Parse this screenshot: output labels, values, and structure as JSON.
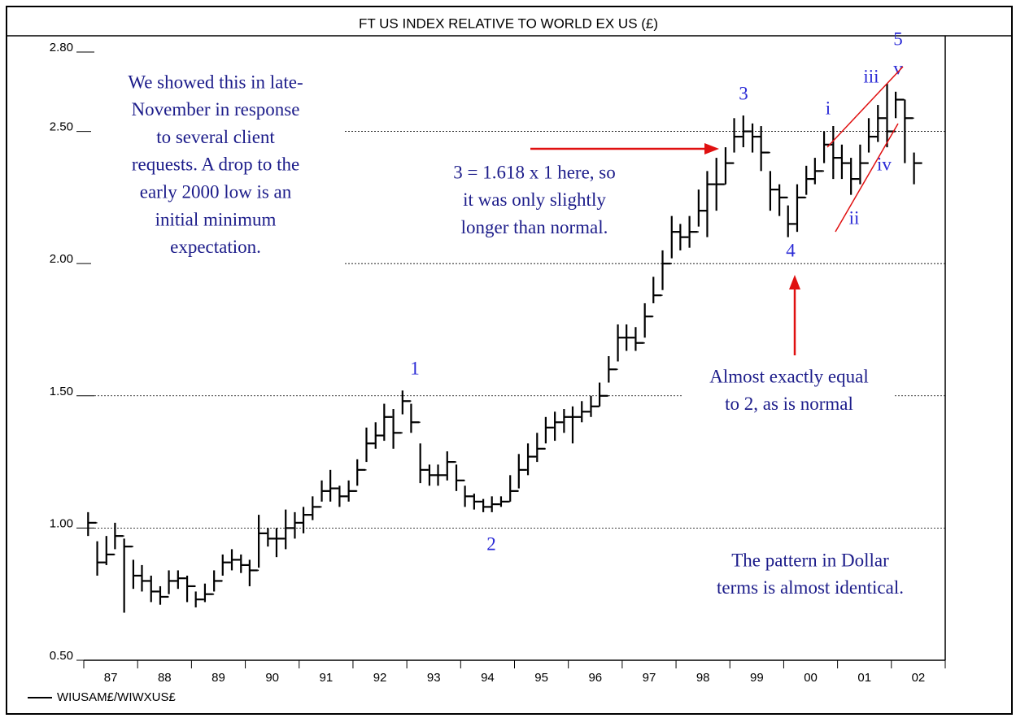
{
  "chart_data": {
    "type": "hlc",
    "title": "FT US INDEX RELATIVE TO WORLD EX US (£)",
    "xlim": [
      1987,
      2003
    ],
    "xticks": [
      1987,
      1988,
      1989,
      1990,
      1991,
      1992,
      1993,
      1994,
      1995,
      1996,
      1997,
      1998,
      1999,
      2000,
      2001,
      2002,
      2003
    ],
    "xtick_labels": [
      {
        "value": 1987.5,
        "label": "87"
      },
      {
        "value": 1988.5,
        "label": "88"
      },
      {
        "value": 1989.5,
        "label": "89"
      },
      {
        "value": 1990.5,
        "label": "90"
      },
      {
        "value": 1991.5,
        "label": "91"
      },
      {
        "value": 1992.5,
        "label": "92"
      },
      {
        "value": 1993.5,
        "label": "93"
      },
      {
        "value": 1994.5,
        "label": "94"
      },
      {
        "value": 1995.5,
        "label": "95"
      },
      {
        "value": 1996.5,
        "label": "96"
      },
      {
        "value": 1997.5,
        "label": "97"
      },
      {
        "value": 1998.5,
        "label": "98"
      },
      {
        "value": 1999.5,
        "label": "99"
      },
      {
        "value": 2000.5,
        "label": "00"
      },
      {
        "value": 2001.5,
        "label": "01"
      },
      {
        "value": 2002.5,
        "label": "02"
      }
    ],
    "ylim": [
      0.5,
      2.8
    ],
    "yticks": [
      {
        "value": 0.5,
        "label": "0.50"
      },
      {
        "value": 1.0,
        "label": "1.00"
      },
      {
        "value": 1.5,
        "label": "1.50"
      },
      {
        "value": 2.0,
        "label": "2.00"
      },
      {
        "value": 2.5,
        "label": "2.50"
      },
      {
        "value": 2.8,
        "label": "2.80"
      }
    ],
    "grid": true,
    "x": [
      1987.08,
      1987.25,
      1987.42,
      1987.58,
      1987.75,
      1987.92,
      1988.08,
      1988.25,
      1988.42,
      1988.58,
      1988.75,
      1988.92,
      1989.08,
      1989.25,
      1989.42,
      1989.58,
      1989.75,
      1989.92,
      1990.08,
      1990.25,
      1990.42,
      1990.58,
      1990.75,
      1990.92,
      1991.08,
      1991.25,
      1991.42,
      1991.58,
      1991.75,
      1991.92,
      1992.08,
      1992.25,
      1992.42,
      1992.58,
      1992.75,
      1992.92,
      1993.08,
      1993.25,
      1993.42,
      1993.58,
      1993.75,
      1993.92,
      1994.08,
      1994.25,
      1994.42,
      1994.58,
      1994.75,
      1994.92,
      1995.08,
      1995.25,
      1995.42,
      1995.58,
      1995.75,
      1995.92,
      1996.08,
      1996.25,
      1996.42,
      1996.58,
      1996.75,
      1996.92,
      1997.08,
      1997.25,
      1997.42,
      1997.58,
      1997.75,
      1997.92,
      1998.08,
      1998.25,
      1998.42,
      1998.58,
      1998.75,
      1998.92,
      1999.08,
      1999.25,
      1999.42,
      1999.58,
      1999.75,
      1999.92,
      2000.08,
      2000.25,
      2000.42,
      2000.58,
      2000.75,
      2000.92,
      2001.08,
      2001.25,
      2001.42,
      2001.58,
      2001.75,
      2001.92,
      2002.08,
      2002.25,
      2002.42
    ],
    "series": [
      {
        "name": "WIUSAM£/WIWXUS£",
        "color": "#000000",
        "high": [
          1.06,
          0.95,
          0.97,
          1.02,
          0.96,
          0.88,
          0.86,
          0.82,
          0.78,
          0.84,
          0.84,
          0.82,
          0.76,
          0.79,
          0.84,
          0.9,
          0.92,
          0.9,
          0.88,
          1.05,
          1.0,
          1.0,
          1.07,
          1.06,
          1.08,
          1.12,
          1.18,
          1.22,
          1.16,
          1.18,
          1.26,
          1.38,
          1.4,
          1.47,
          1.45,
          1.52,
          1.47,
          1.32,
          1.24,
          1.24,
          1.29,
          1.24,
          1.16,
          1.13,
          1.11,
          1.12,
          1.12,
          1.2,
          1.28,
          1.32,
          1.36,
          1.42,
          1.44,
          1.45,
          1.46,
          1.48,
          1.5,
          1.55,
          1.65,
          1.77,
          1.77,
          1.76,
          1.85,
          1.95,
          2.05,
          2.18,
          2.15,
          2.18,
          2.28,
          2.35,
          2.4,
          2.44,
          2.55,
          2.56,
          2.53,
          2.52,
          2.35,
          2.3,
          2.22,
          2.3,
          2.37,
          2.4,
          2.5,
          2.52,
          2.45,
          2.4,
          2.45,
          2.55,
          2.6,
          2.68,
          2.65,
          2.62,
          2.42
        ],
        "low": [
          0.97,
          0.82,
          0.86,
          0.92,
          0.68,
          0.77,
          0.76,
          0.72,
          0.71,
          0.75,
          0.77,
          0.72,
          0.7,
          0.72,
          0.76,
          0.82,
          0.84,
          0.83,
          0.78,
          0.85,
          0.93,
          0.89,
          0.92,
          0.96,
          0.98,
          1.03,
          1.1,
          1.1,
          1.08,
          1.1,
          1.16,
          1.25,
          1.3,
          1.33,
          1.3,
          1.43,
          1.36,
          1.17,
          1.16,
          1.16,
          1.18,
          1.14,
          1.08,
          1.07,
          1.06,
          1.06,
          1.08,
          1.1,
          1.15,
          1.2,
          1.25,
          1.32,
          1.33,
          1.36,
          1.32,
          1.4,
          1.42,
          1.46,
          1.55,
          1.63,
          1.67,
          1.67,
          1.72,
          1.85,
          1.9,
          2.02,
          2.05,
          2.06,
          2.14,
          2.1,
          2.2,
          2.3,
          2.42,
          2.44,
          2.42,
          2.35,
          2.2,
          2.18,
          2.1,
          2.12,
          2.26,
          2.3,
          2.38,
          2.32,
          2.32,
          2.26,
          2.3,
          2.42,
          2.46,
          2.44,
          2.55,
          2.38,
          2.3
        ],
        "close": [
          1.02,
          0.87,
          0.9,
          0.97,
          0.93,
          0.82,
          0.8,
          0.76,
          0.74,
          0.8,
          0.81,
          0.78,
          0.73,
          0.75,
          0.8,
          0.87,
          0.88,
          0.86,
          0.84,
          0.98,
          0.96,
          0.96,
          1.0,
          1.02,
          1.05,
          1.08,
          1.14,
          1.15,
          1.12,
          1.14,
          1.22,
          1.32,
          1.35,
          1.42,
          1.36,
          1.48,
          1.4,
          1.22,
          1.2,
          1.2,
          1.25,
          1.18,
          1.12,
          1.1,
          1.08,
          1.09,
          1.1,
          1.14,
          1.22,
          1.27,
          1.3,
          1.38,
          1.4,
          1.42,
          1.42,
          1.44,
          1.46,
          1.5,
          1.6,
          1.72,
          1.72,
          1.7,
          1.8,
          1.88,
          2.0,
          2.12,
          2.1,
          2.12,
          2.2,
          2.3,
          2.3,
          2.38,
          2.48,
          2.5,
          2.48,
          2.42,
          2.28,
          2.25,
          2.15,
          2.25,
          2.32,
          2.35,
          2.45,
          2.4,
          2.38,
          2.32,
          2.38,
          2.48,
          2.55,
          2.5,
          2.62,
          2.55,
          2.38
        ]
      }
    ],
    "notes": [
      [
        "We showed this in late-",
        "November in response",
        "to several client",
        "requests.  A drop to the",
        "early 2000 low is an",
        "initial minimum",
        "expectation."
      ],
      [
        "3 = 1.618 x 1 here, so",
        "it was only slightly",
        "longer than normal."
      ],
      [
        "Almost exactly equal",
        "to 2, as is normal"
      ],
      [
        "The pattern in Dollar",
        "terms is almost identical."
      ]
    ],
    "wave_labels": [
      "1",
      "2",
      "3",
      "4",
      "5",
      "i",
      "ii",
      "iii",
      "iv",
      "v"
    ]
  }
}
